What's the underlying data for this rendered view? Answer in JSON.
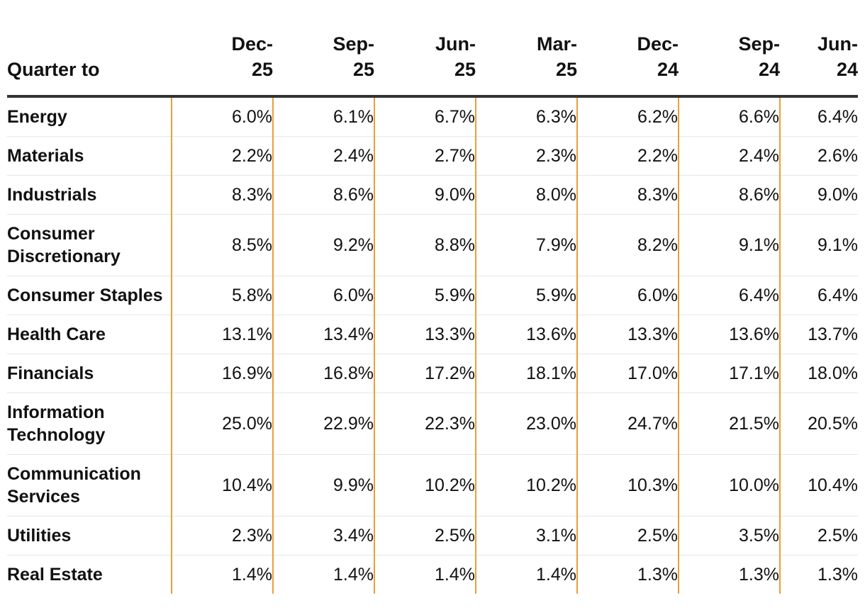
{
  "chart_data": {
    "type": "table",
    "columns": [
      {
        "label": "Quarter to"
      },
      {
        "line1": "Dec-",
        "line2": "25"
      },
      {
        "line1": "Sep-",
        "line2": "25"
      },
      {
        "line1": "Jun-",
        "line2": "25"
      },
      {
        "line1": "Mar-",
        "line2": "25"
      },
      {
        "line1": "Dec-",
        "line2": "24"
      },
      {
        "line1": "Sep-",
        "line2": "24"
      },
      {
        "line1": "Jun-",
        "line2": "24"
      }
    ],
    "rows": [
      {
        "label": "Energy",
        "values": [
          "6.0%",
          "6.1%",
          "6.7%",
          "6.3%",
          "6.2%",
          "6.6%",
          "6.4%"
        ]
      },
      {
        "label": "Materials",
        "values": [
          "2.2%",
          "2.4%",
          "2.7%",
          "2.3%",
          "2.2%",
          "2.4%",
          "2.6%"
        ]
      },
      {
        "label": "Industrials",
        "values": [
          "8.3%",
          "8.6%",
          "9.0%",
          "8.0%",
          "8.3%",
          "8.6%",
          "9.0%"
        ]
      },
      {
        "label": "Consumer Discretionary",
        "values": [
          "8.5%",
          "9.2%",
          "8.8%",
          "7.9%",
          "8.2%",
          "9.1%",
          "9.1%"
        ]
      },
      {
        "label": "Consumer Staples",
        "values": [
          "5.8%",
          "6.0%",
          "5.9%",
          "5.9%",
          "6.0%",
          "6.4%",
          "6.4%"
        ]
      },
      {
        "label": "Health Care",
        "values": [
          "13.1%",
          "13.4%",
          "13.3%",
          "13.6%",
          "13.3%",
          "13.6%",
          "13.7%"
        ]
      },
      {
        "label": "Financials",
        "values": [
          "16.9%",
          "16.8%",
          "17.2%",
          "18.1%",
          "17.0%",
          "17.1%",
          "18.0%"
        ]
      },
      {
        "label": "Information Technology",
        "values": [
          "25.0%",
          "22.9%",
          "22.3%",
          "23.0%",
          "24.7%",
          "21.5%",
          "20.5%"
        ]
      },
      {
        "label": "Communication Services",
        "values": [
          "10.4%",
          "9.9%",
          "10.2%",
          "10.2%",
          "10.3%",
          "10.0%",
          "10.4%"
        ]
      },
      {
        "label": "Utilities",
        "values": [
          "2.3%",
          "3.4%",
          "2.5%",
          "3.1%",
          "2.5%",
          "3.5%",
          "2.5%"
        ]
      },
      {
        "label": "Real Estate",
        "values": [
          "1.4%",
          "1.4%",
          "1.4%",
          "1.4%",
          "1.3%",
          "1.3%",
          "1.3%"
        ]
      }
    ],
    "colors": {
      "separator": "#e8a038",
      "header_rule": "#333333",
      "row_rule": "#e6e6e6"
    }
  }
}
